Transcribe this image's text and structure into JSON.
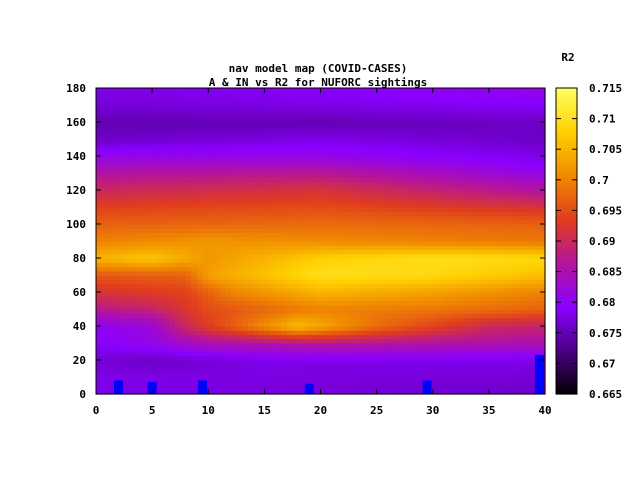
{
  "chart_data": {
    "type": "heatmap",
    "title": "nav model map (COVID-CASES)",
    "subtitle": "A & IN vs R2 for NUFORC sightings",
    "colorbar_label": "R2",
    "xlabel": "",
    "ylabel": "",
    "xlim": [
      0,
      40
    ],
    "ylim": [
      0,
      180
    ],
    "x_ticks": [
      "0",
      "5",
      "10",
      "15",
      "20",
      "25",
      "30",
      "35",
      "40"
    ],
    "y_ticks": [
      "0",
      "20",
      "40",
      "60",
      "80",
      "100",
      "120",
      "140",
      "160",
      "180"
    ],
    "colorbar_range": [
      0.665,
      0.715
    ],
    "colorbar_ticks": [
      "0.665",
      "0.67",
      "0.675",
      "0.68",
      "0.685",
      "0.69",
      "0.695",
      "0.7",
      "0.705",
      "0.71",
      "0.715"
    ],
    "colormap": [
      "#000000",
      "#4b0082",
      "#8a00ff",
      "#b4149c",
      "#e03c1e",
      "#f08a00",
      "#ffd000",
      "#ffff60"
    ],
    "y_rows": [
      0,
      10,
      20,
      30,
      40,
      50,
      60,
      70,
      80,
      90,
      100,
      110,
      120,
      130,
      140,
      150,
      160,
      170,
      180
    ],
    "row_profiles": [
      [
        [
          0,
          0.678
        ],
        [
          40,
          0.676
        ]
      ],
      [
        [
          0,
          0.678
        ],
        [
          40,
          0.677
        ]
      ],
      [
        [
          0,
          0.677
        ],
        [
          5,
          0.676
        ],
        [
          15,
          0.678
        ],
        [
          40,
          0.678
        ]
      ],
      [
        [
          0,
          0.679
        ],
        [
          5,
          0.681
        ],
        [
          10,
          0.685
        ],
        [
          20,
          0.687
        ],
        [
          30,
          0.686
        ],
        [
          40,
          0.685
        ]
      ],
      [
        [
          0,
          0.68
        ],
        [
          5,
          0.682
        ],
        [
          8,
          0.69
        ],
        [
          18,
          0.706
        ],
        [
          25,
          0.698
        ],
        [
          35,
          0.69
        ],
        [
          40,
          0.689
        ]
      ],
      [
        [
          0,
          0.687
        ],
        [
          5,
          0.689
        ],
        [
          10,
          0.695
        ],
        [
          20,
          0.7
        ],
        [
          30,
          0.699
        ],
        [
          40,
          0.697
        ]
      ],
      [
        [
          0,
          0.692
        ],
        [
          8,
          0.694
        ],
        [
          12,
          0.7
        ],
        [
          20,
          0.705
        ],
        [
          30,
          0.703
        ],
        [
          40,
          0.7
        ]
      ],
      [
        [
          0,
          0.696
        ],
        [
          8,
          0.697
        ],
        [
          10,
          0.703
        ],
        [
          20,
          0.71
        ],
        [
          30,
          0.709
        ],
        [
          40,
          0.706
        ]
      ],
      [
        [
          0,
          0.705
        ],
        [
          5,
          0.707
        ],
        [
          10,
          0.702
        ],
        [
          20,
          0.708
        ],
        [
          30,
          0.71
        ],
        [
          40,
          0.709
        ]
      ],
      [
        [
          0,
          0.7
        ],
        [
          10,
          0.702
        ],
        [
          20,
          0.701
        ],
        [
          30,
          0.7
        ],
        [
          40,
          0.699
        ]
      ],
      [
        [
          0,
          0.697
        ],
        [
          20,
          0.698
        ],
        [
          40,
          0.697
        ]
      ],
      [
        [
          0,
          0.694
        ],
        [
          20,
          0.695
        ],
        [
          40,
          0.692
        ]
      ],
      [
        [
          0,
          0.69
        ],
        [
          20,
          0.692
        ],
        [
          30,
          0.689
        ],
        [
          40,
          0.686
        ]
      ],
      [
        [
          0,
          0.686
        ],
        [
          20,
          0.687
        ],
        [
          30,
          0.684
        ],
        [
          40,
          0.681
        ]
      ],
      [
        [
          0,
          0.681
        ],
        [
          20,
          0.681
        ],
        [
          40,
          0.678
        ]
      ],
      [
        [
          0,
          0.676
        ],
        [
          20,
          0.678
        ],
        [
          40,
          0.676
        ]
      ],
      [
        [
          0,
          0.675
        ],
        [
          20,
          0.675
        ],
        [
          40,
          0.676
        ]
      ],
      [
        [
          0,
          0.677
        ],
        [
          20,
          0.678
        ],
        [
          40,
          0.679
        ]
      ],
      [
        [
          0,
          0.678
        ],
        [
          20,
          0.679
        ],
        [
          40,
          0.681
        ]
      ]
    ],
    "markers": [
      {
        "x": 2,
        "y_range": [
          0,
          8
        ]
      },
      {
        "x": 5,
        "y_range": [
          0,
          7
        ]
      },
      {
        "x": 9.5,
        "y_range": [
          0,
          8
        ]
      },
      {
        "x": 19,
        "y_range": [
          0,
          6
        ]
      },
      {
        "x": 29.5,
        "y_range": [
          0,
          8
        ]
      },
      {
        "x": 39.5,
        "y_range": [
          0,
          23
        ]
      }
    ],
    "marker_color": "#0000ff",
    "grid": false
  }
}
